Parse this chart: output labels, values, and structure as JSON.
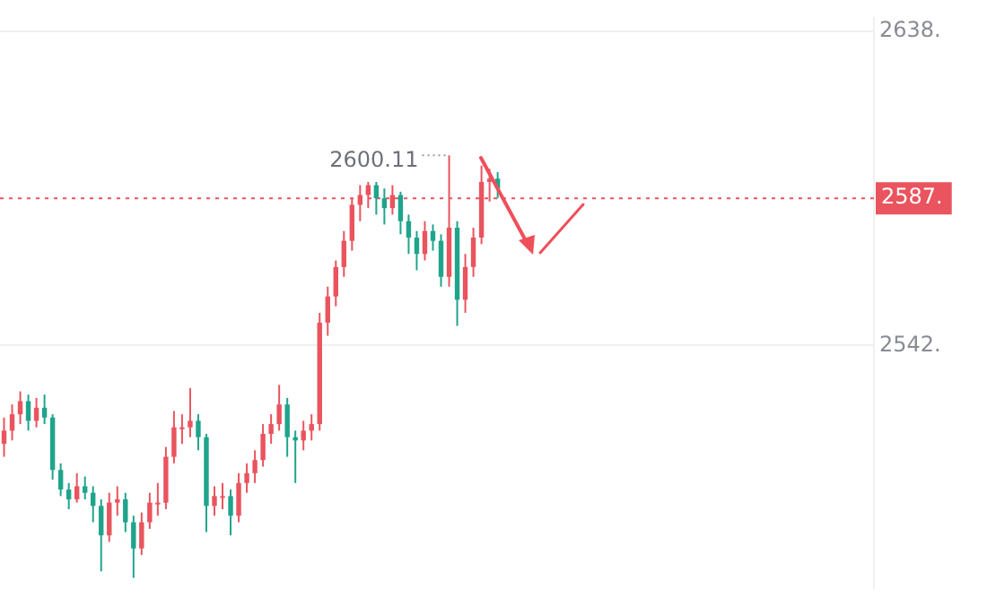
{
  "chart_data": {
    "type": "candlestick",
    "categories": [
      null,
      null,
      null,
      null,
      null,
      null,
      null,
      null,
      null,
      null,
      null,
      null,
      null,
      null,
      null,
      null,
      null,
      null,
      null,
      null,
      null,
      null,
      null,
      null,
      null,
      null,
      null,
      null,
      null,
      null,
      null,
      null,
      null,
      null,
      null,
      null,
      null,
      null,
      null,
      null,
      null,
      null,
      null,
      null,
      null,
      null,
      null,
      null,
      null,
      null,
      null,
      null,
      null,
      null,
      null,
      null,
      null,
      null,
      null,
      null,
      null,
      null,
      null,
      null,
      null,
      null,
      null,
      null,
      null,
      null,
      null,
      null,
      null,
      null,
      null,
      null,
      null,
      null,
      null,
      null,
      null,
      null,
      null,
      null,
      null,
      null,
      null,
      null,
      null,
      null,
      null,
      null,
      null,
      null,
      null,
      null,
      null,
      null,
      null,
      null,
      null,
      null,
      null,
      null,
      null,
      null,
      null,
      null
    ],
    "ohlc": [
      [
        2512,
        2520,
        2508,
        2516
      ],
      [
        2516,
        2524,
        2513,
        2521
      ],
      [
        2521,
        2528,
        2518,
        2525
      ],
      [
        2525,
        2527,
        2516,
        2519
      ],
      [
        2519,
        2526,
        2517,
        2523
      ],
      [
        2523,
        2527,
        2518,
        2520
      ],
      [
        2520,
        2521,
        2501,
        2504
      ],
      [
        2504,
        2506,
        2496,
        2498
      ],
      [
        2498,
        2500,
        2492,
        2495
      ],
      [
        2495,
        2503,
        2494,
        2499
      ],
      [
        2499,
        2502,
        2495,
        2497
      ],
      [
        2497,
        2499,
        2488,
        2493
      ],
      [
        2493,
        2495,
        2473,
        2484
      ],
      [
        2484,
        2497,
        2482,
        2494
      ],
      [
        2494,
        2499,
        2490,
        2495
      ],
      [
        2495,
        2497,
        2485,
        2488
      ],
      [
        2488,
        2490,
        2471,
        2480
      ],
      [
        2480,
        2491,
        2478,
        2488
      ],
      [
        2488,
        2497,
        2486,
        2494
      ],
      [
        2494,
        2500,
        2490,
        2494
      ],
      [
        2494,
        2511,
        2492,
        2508
      ],
      [
        2508,
        2522,
        2506,
        2517
      ],
      [
        2517,
        2521,
        2512,
        2517
      ],
      [
        2517,
        2529,
        2514,
        2519
      ],
      [
        2519,
        2521,
        2510,
        2514
      ],
      [
        2514,
        2515,
        2485,
        2493
      ],
      [
        2493,
        2499,
        2490,
        2496
      ],
      [
        2496,
        2500,
        2492,
        2496
      ],
      [
        2496,
        2498,
        2484,
        2490
      ],
      [
        2490,
        2503,
        2488,
        2500
      ],
      [
        2500,
        2506,
        2497,
        2503
      ],
      [
        2503,
        2510,
        2500,
        2507
      ],
      [
        2507,
        2518,
        2505,
        2515
      ],
      [
        2515,
        2521,
        2512,
        2518
      ],
      [
        2518,
        2530,
        2516,
        2524
      ],
      [
        2524,
        2526,
        2508,
        2514
      ],
      [
        2514,
        2516,
        2500,
        2513
      ],
      [
        2513,
        2519,
        2510,
        2516
      ],
      [
        2516,
        2521,
        2513,
        2518
      ],
      [
        2518,
        2552,
        2516,
        2549
      ],
      [
        2549,
        2560,
        2545,
        2557
      ],
      [
        2557,
        2568,
        2554,
        2566
      ],
      [
        2566,
        2577,
        2563,
        2574
      ],
      [
        2574,
        2587,
        2571,
        2585
      ],
      [
        2585,
        2591,
        2580,
        2588
      ],
      [
        2588,
        2592,
        2584,
        2591
      ],
      [
        2591,
        2592,
        2582,
        2587
      ],
      [
        2587,
        2590,
        2579,
        2584
      ],
      [
        2584,
        2591,
        2582,
        2588
      ],
      [
        2588,
        2589,
        2576,
        2580
      ],
      [
        2580,
        2582,
        2570,
        2575
      ],
      [
        2575,
        2577,
        2565,
        2570
      ],
      [
        2570,
        2580,
        2568,
        2577
      ],
      [
        2577,
        2579,
        2571,
        2574
      ],
      [
        2574,
        2576,
        2560,
        2563
      ],
      [
        2563,
        2600.11,
        2560,
        2578
      ],
      [
        2578,
        2580,
        2548,
        2556
      ],
      [
        2556,
        2570,
        2552,
        2566
      ],
      [
        2566,
        2578,
        2563,
        2575
      ],
      [
        2575,
        2597,
        2573,
        2592
      ],
      [
        2592,
        2596,
        2586,
        2593
      ],
      [
        2593,
        2595,
        2587,
        2590
      ],
      null,
      null,
      null,
      null,
      null,
      null,
      null,
      null,
      null,
      null,
      null,
      null,
      null,
      null,
      null,
      null,
      null,
      null,
      null,
      null,
      null,
      null,
      null,
      null,
      null,
      null,
      null,
      null,
      null,
      null,
      null,
      null,
      null,
      null,
      null,
      null,
      null,
      null,
      null,
      null,
      null,
      null,
      null,
      null,
      null,
      null
    ],
    "colors": [
      "#e9545e",
      "#e9545e",
      "#e9545e",
      "#1fa48c",
      "#e9545e",
      "#1fa48c",
      "#1fa48c",
      "#1fa48c",
      "#1fa48c",
      "#e9545e",
      "#1fa48c",
      "#1fa48c",
      "#1fa48c",
      "#e9545e",
      "#e9545e",
      "#1fa48c",
      "#1fa48c",
      "#e9545e",
      "#e9545e",
      "#e9545e",
      "#e9545e",
      "#e9545e",
      "#e9545e",
      "#e9545e",
      "#1fa48c",
      "#1fa48c",
      "#e9545e",
      "#e9545e",
      "#1fa48c",
      "#e9545e",
      "#e9545e",
      "#e9545e",
      "#e9545e",
      "#e9545e",
      "#e9545e",
      "#1fa48c",
      "#1fa48c",
      "#e9545e",
      "#e9545e",
      "#e9545e",
      "#e9545e",
      "#e9545e",
      "#e9545e",
      "#e9545e",
      "#e9545e",
      "#e9545e",
      "#1fa48c",
      "#1fa48c",
      "#e9545e",
      "#1fa48c",
      "#1fa48c",
      "#1fa48c",
      "#e9545e",
      "#1fa48c",
      "#1fa48c",
      "#e9545e",
      "#1fa48c",
      "#e9545e",
      "#e9545e",
      "#e9545e",
      "#e9545e",
      "#1fa48c",
      null,
      null,
      null,
      null,
      null,
      null,
      null,
      null,
      null,
      null,
      null,
      null,
      null,
      null,
      null,
      null,
      null,
      null,
      null,
      null,
      null,
      null,
      null,
      null,
      null,
      null,
      null,
      null,
      null,
      null,
      null,
      null,
      null,
      null,
      null,
      null,
      null,
      null,
      null,
      null,
      null,
      null,
      null,
      null,
      null,
      null
    ],
    "ylim": [
      2468,
      2642
    ],
    "yticks": [
      {
        "value": 2638,
        "label": "2638."
      },
      {
        "value": 2542,
        "label": "2542."
      }
    ],
    "ref_lines": [
      {
        "axis": "y",
        "value": 2587,
        "label": "2587.",
        "color": "#e9545e",
        "line_style": "dotted"
      }
    ],
    "annotations": [
      "2600.11"
    ],
    "grid": "y",
    "tick_labels": "y",
    "legend": false
  }
}
